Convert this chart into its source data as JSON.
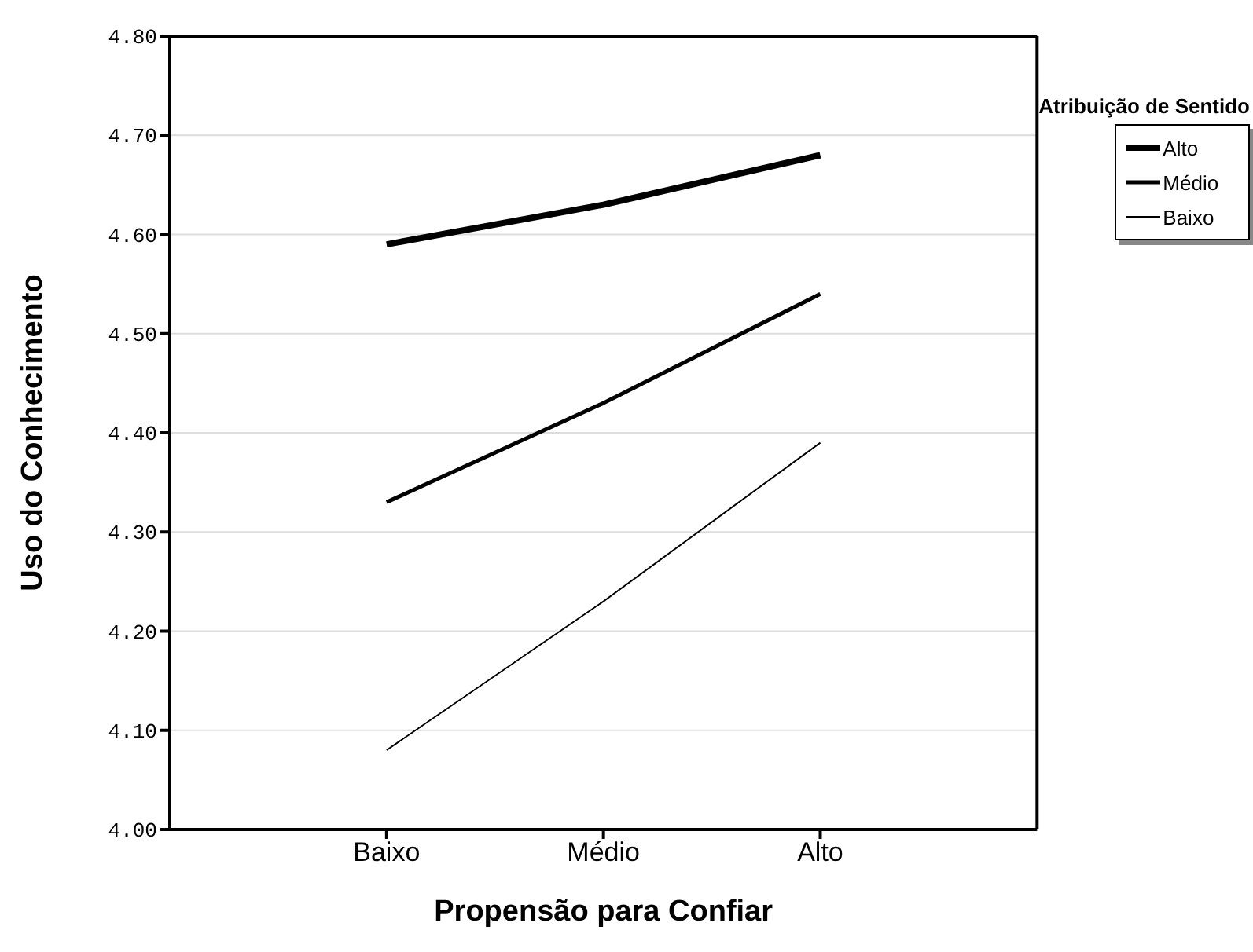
{
  "chart_data": {
    "type": "line",
    "xlabel": "Propensão para Confiar",
    "ylabel": "Uso do Conhecimento",
    "legend_title": "Atribuição de Sentido",
    "categories": [
      "Baixo",
      "Médio",
      "Alto"
    ],
    "series": [
      {
        "name": "Alto",
        "color": "#000000",
        "values": [
          4.59,
          4.63,
          4.68
        ]
      },
      {
        "name": "Médio",
        "color": "#000000",
        "values": [
          4.33,
          4.43,
          4.54
        ]
      },
      {
        "name": "Baixo",
        "color": "#000000",
        "values": [
          4.08,
          4.23,
          4.39
        ]
      }
    ],
    "ylim": [
      4.0,
      4.8
    ],
    "yticks": [
      {
        "value": 4.0,
        "label": "4.00"
      },
      {
        "value": 4.1,
        "label": "4.10"
      },
      {
        "value": 4.2,
        "label": "4.20"
      },
      {
        "value": 4.3,
        "label": "4.30"
      },
      {
        "value": 4.4,
        "label": "4.40"
      },
      {
        "value": 4.5,
        "label": "4.50"
      },
      {
        "value": 4.6,
        "label": "4.60"
      },
      {
        "value": 4.7,
        "label": "4.70"
      },
      {
        "value": 4.8,
        "label": "4.80"
      }
    ],
    "grid": "y",
    "legend": "top right",
    "marker": "none",
    "line_style": "solid"
  }
}
